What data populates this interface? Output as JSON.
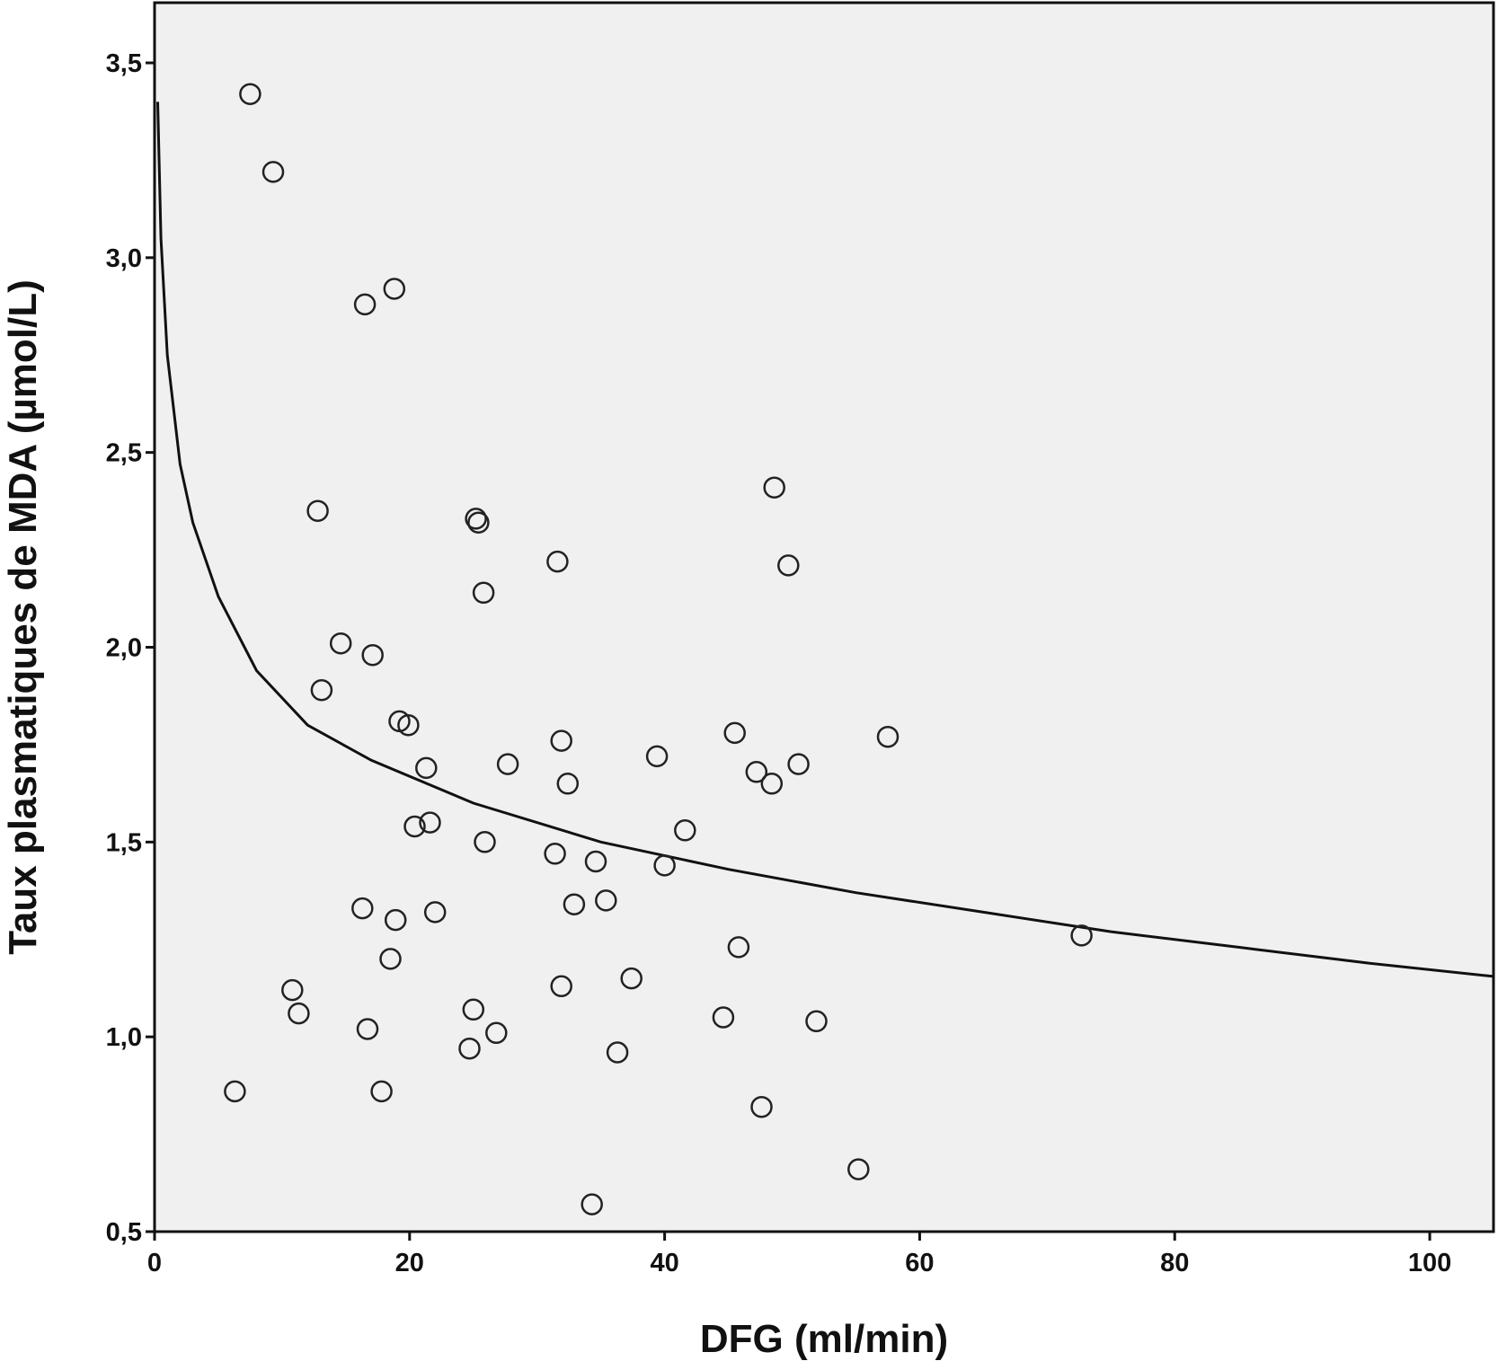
{
  "chart_data": {
    "type": "scatter",
    "title": "",
    "xlabel": "DFG (ml/min)",
    "ylabel": "Taux plasmatiques de MDA (µmol/L)",
    "xlim": [
      0,
      105
    ],
    "ylim": [
      0.5,
      3.65
    ],
    "x_ticks": [
      0,
      20,
      40,
      60,
      80,
      100
    ],
    "x_tick_labels": [
      "0",
      "20",
      "40",
      "60",
      "80",
      "100"
    ],
    "y_ticks": [
      0.5,
      1.0,
      1.5,
      2.0,
      2.5,
      3.0,
      3.5
    ],
    "y_tick_labels": [
      "0,5",
      "1,0",
      "1,5",
      "2,0",
      "2,5",
      "3,0",
      "3,5"
    ],
    "grid": false,
    "legend": "none",
    "colors": {
      "background": "#f0f0f0",
      "marker": "#222222",
      "curve": "#111111"
    },
    "points": [
      {
        "x": 7.5,
        "y": 3.42
      },
      {
        "x": 9.3,
        "y": 3.22
      },
      {
        "x": 16.5,
        "y": 2.88
      },
      {
        "x": 18.8,
        "y": 2.92
      },
      {
        "x": 12.8,
        "y": 2.35
      },
      {
        "x": 25.2,
        "y": 2.33
      },
      {
        "x": 25.4,
        "y": 2.32
      },
      {
        "x": 31.6,
        "y": 2.22
      },
      {
        "x": 25.8,
        "y": 2.14
      },
      {
        "x": 48.6,
        "y": 2.41
      },
      {
        "x": 49.7,
        "y": 2.21
      },
      {
        "x": 14.6,
        "y": 2.01
      },
      {
        "x": 17.1,
        "y": 1.98
      },
      {
        "x": 13.1,
        "y": 1.89
      },
      {
        "x": 19.2,
        "y": 1.81
      },
      {
        "x": 19.9,
        "y": 1.8
      },
      {
        "x": 21.3,
        "y": 1.69
      },
      {
        "x": 27.7,
        "y": 1.7
      },
      {
        "x": 31.9,
        "y": 1.76
      },
      {
        "x": 32.4,
        "y": 1.65
      },
      {
        "x": 39.4,
        "y": 1.72
      },
      {
        "x": 45.5,
        "y": 1.78
      },
      {
        "x": 47.2,
        "y": 1.68
      },
      {
        "x": 48.4,
        "y": 1.65
      },
      {
        "x": 50.5,
        "y": 1.7
      },
      {
        "x": 57.5,
        "y": 1.77
      },
      {
        "x": 20.4,
        "y": 1.54
      },
      {
        "x": 21.6,
        "y": 1.55
      },
      {
        "x": 25.9,
        "y": 1.5
      },
      {
        "x": 31.4,
        "y": 1.47
      },
      {
        "x": 34.6,
        "y": 1.45
      },
      {
        "x": 41.6,
        "y": 1.53
      },
      {
        "x": 40.0,
        "y": 1.44
      },
      {
        "x": 16.3,
        "y": 1.33
      },
      {
        "x": 18.9,
        "y": 1.3
      },
      {
        "x": 22.0,
        "y": 1.32
      },
      {
        "x": 32.9,
        "y": 1.34
      },
      {
        "x": 35.4,
        "y": 1.35
      },
      {
        "x": 18.5,
        "y": 1.2
      },
      {
        "x": 45.8,
        "y": 1.23
      },
      {
        "x": 72.7,
        "y": 1.26
      },
      {
        "x": 10.8,
        "y": 1.12
      },
      {
        "x": 11.3,
        "y": 1.06
      },
      {
        "x": 31.9,
        "y": 1.13
      },
      {
        "x": 37.4,
        "y": 1.15
      },
      {
        "x": 16.7,
        "y": 1.02
      },
      {
        "x": 25.0,
        "y": 1.07
      },
      {
        "x": 26.8,
        "y": 1.01
      },
      {
        "x": 24.7,
        "y": 0.97
      },
      {
        "x": 36.3,
        "y": 0.96
      },
      {
        "x": 44.6,
        "y": 1.05
      },
      {
        "x": 51.9,
        "y": 1.04
      },
      {
        "x": 6.3,
        "y": 0.86
      },
      {
        "x": 17.8,
        "y": 0.86
      },
      {
        "x": 47.6,
        "y": 0.82
      },
      {
        "x": 55.2,
        "y": 0.66
      },
      {
        "x": 34.3,
        "y": 0.57
      }
    ],
    "fit_curve": {
      "model": "logarithmic",
      "points": [
        {
          "x": 0.25,
          "y": 3.4
        },
        {
          "x": 0.5,
          "y": 3.05
        },
        {
          "x": 1,
          "y": 2.75
        },
        {
          "x": 2,
          "y": 2.47
        },
        {
          "x": 3,
          "y": 2.32
        },
        {
          "x": 5,
          "y": 2.13
        },
        {
          "x": 8,
          "y": 1.94
        },
        {
          "x": 12,
          "y": 1.8
        },
        {
          "x": 17,
          "y": 1.71
        },
        {
          "x": 25,
          "y": 1.6
        },
        {
          "x": 35,
          "y": 1.5
        },
        {
          "x": 45,
          "y": 1.43
        },
        {
          "x": 55,
          "y": 1.37
        },
        {
          "x": 65,
          "y": 1.32
        },
        {
          "x": 75,
          "y": 1.27
        },
        {
          "x": 85,
          "y": 1.23
        },
        {
          "x": 95,
          "y": 1.19
        },
        {
          "x": 105,
          "y": 1.155
        }
      ]
    }
  }
}
